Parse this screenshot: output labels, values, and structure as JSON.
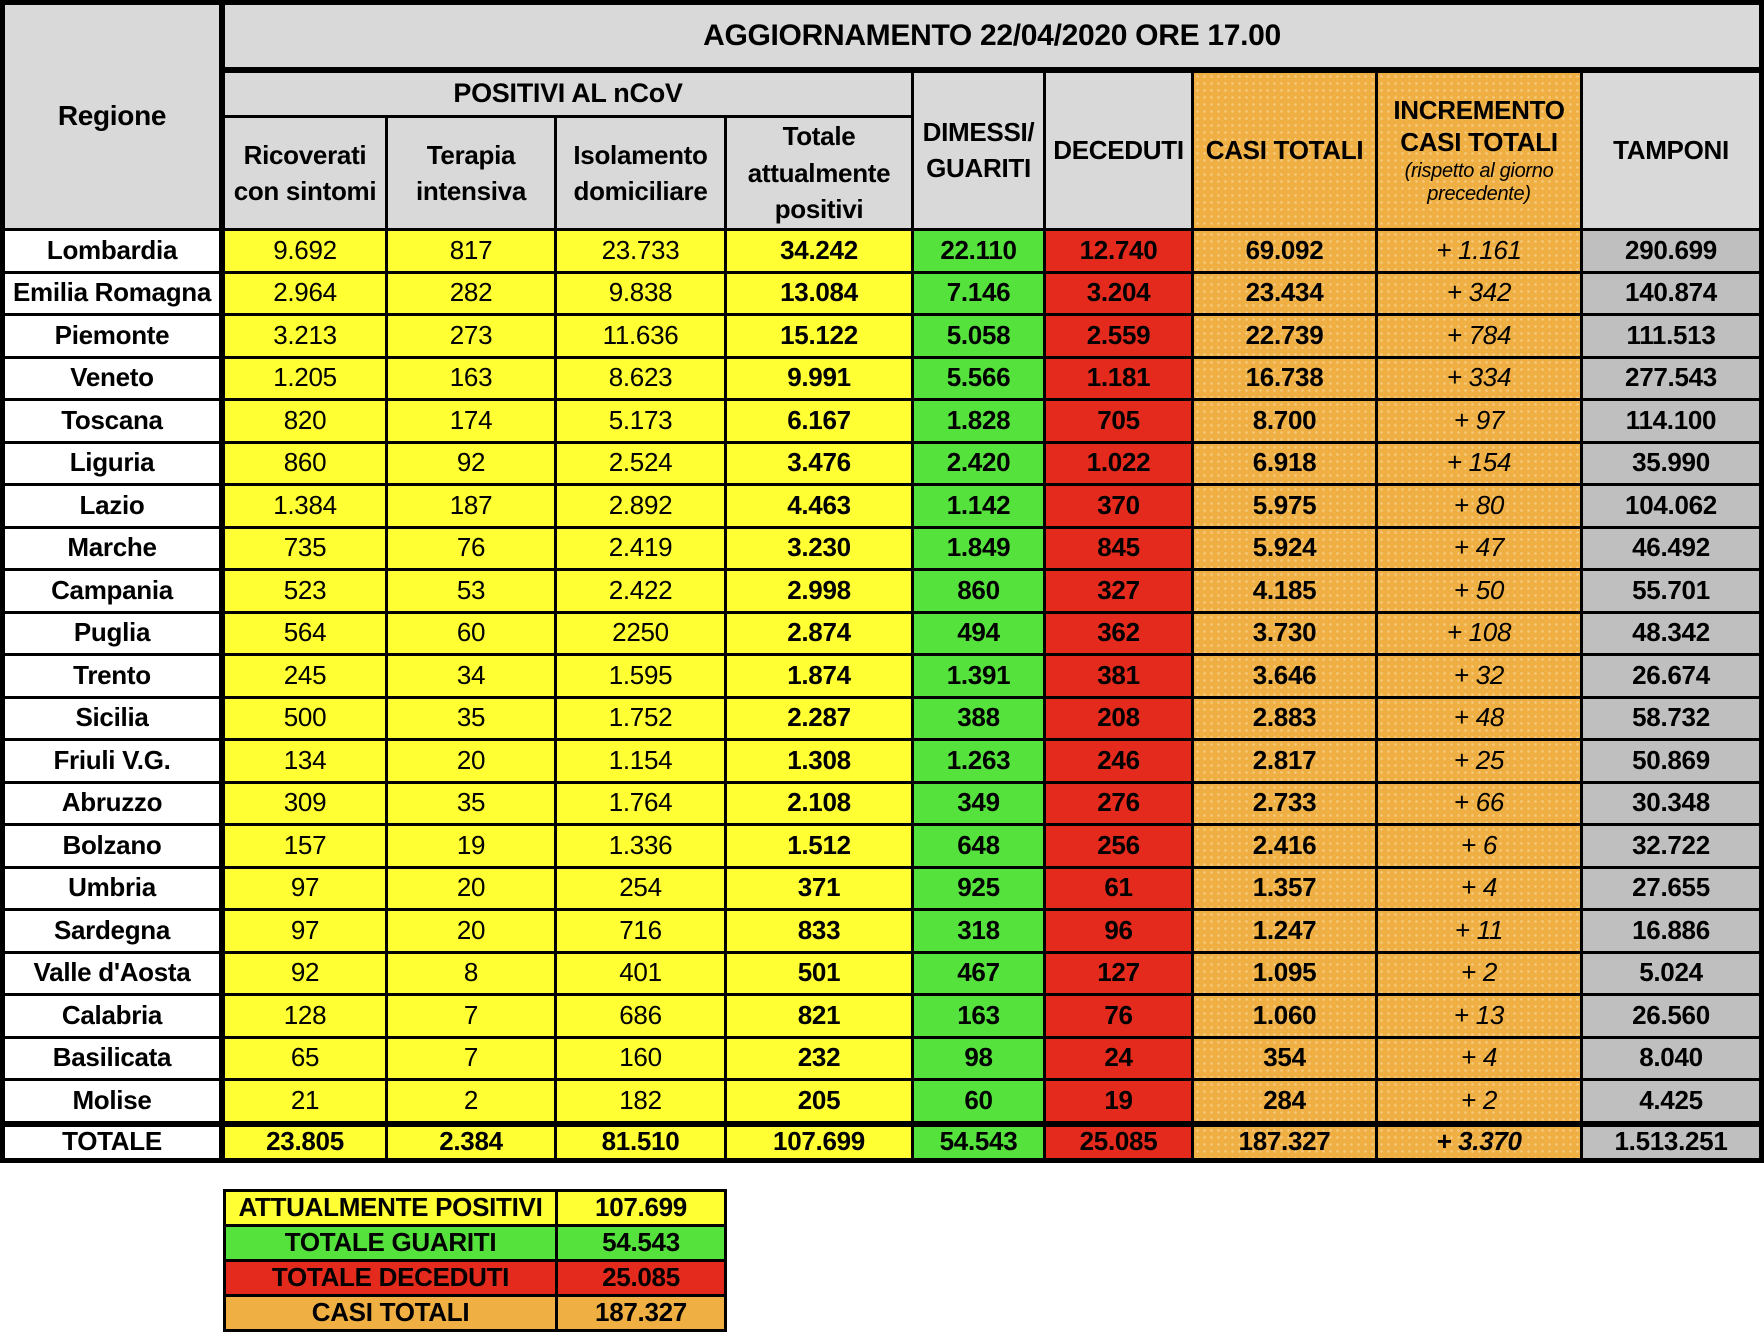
{
  "colors": {
    "yellow": "#FFFF33",
    "green": "#55E23C",
    "red": "#E42A1C",
    "orange": "#EFAF42",
    "header_gray": "#D9D9D9",
    "swab_gray": "#BFBFBF",
    "region_white": "#FFFFFF"
  },
  "header": {
    "update_title": "AGGIORNAMENTO 22/04/2020 ORE 17.00",
    "region_label": "Regione",
    "positives_group": "POSITIVI AL nCoV",
    "col_hospitalized": "Ricoverati con sintomi",
    "col_icu": "Terapia intensiva",
    "col_isolation": "Isolamento domiciliare",
    "col_total_positive": "Totale attualmente positivi",
    "col_recovered": "DIMESSI/ GUARITI",
    "col_deceased": "DECEDUTI",
    "col_total_cases": "CASI TOTALI",
    "col_increment": "INCREMENTO CASI TOTALI",
    "col_increment_note": "(rispetto al giorno precedente)",
    "col_swabs": "TAMPONI"
  },
  "chart_data": {
    "type": "table",
    "title": "AGGIORNAMENTO 22/04/2020 ORE 17.00",
    "column_group": {
      "label": "POSITIVI AL nCoV",
      "columns": [
        "Ricoverati con sintomi",
        "Terapia intensiva",
        "Isolamento domiciliare",
        "Totale attualmente positivi"
      ]
    },
    "columns": [
      "Regione",
      "Ricoverati con sintomi",
      "Terapia intensiva",
      "Isolamento domiciliare",
      "Totale attualmente positivi",
      "DIMESSI/ GUARITI",
      "DECEDUTI",
      "CASI TOTALI",
      "INCREMENTO CASI TOTALI (rispetto al giorno precedente)",
      "TAMPONI"
    ],
    "rows": [
      [
        "Lombardia",
        "9.692",
        "817",
        "23.733",
        "34.242",
        "22.110",
        "12.740",
        "69.092",
        "+ 1.161",
        "290.699"
      ],
      [
        "Emilia Romagna",
        "2.964",
        "282",
        "9.838",
        "13.084",
        "7.146",
        "3.204",
        "23.434",
        "+ 342",
        "140.874"
      ],
      [
        "Piemonte",
        "3.213",
        "273",
        "11.636",
        "15.122",
        "5.058",
        "2.559",
        "22.739",
        "+ 784",
        "111.513"
      ],
      [
        "Veneto",
        "1.205",
        "163",
        "8.623",
        "9.991",
        "5.566",
        "1.181",
        "16.738",
        "+ 334",
        "277.543"
      ],
      [
        "Toscana",
        "820",
        "174",
        "5.173",
        "6.167",
        "1.828",
        "705",
        "8.700",
        "+ 97",
        "114.100"
      ],
      [
        "Liguria",
        "860",
        "92",
        "2.524",
        "3.476",
        "2.420",
        "1.022",
        "6.918",
        "+ 154",
        "35.990"
      ],
      [
        "Lazio",
        "1.384",
        "187",
        "2.892",
        "4.463",
        "1.142",
        "370",
        "5.975",
        "+ 80",
        "104.062"
      ],
      [
        "Marche",
        "735",
        "76",
        "2.419",
        "3.230",
        "1.849",
        "845",
        "5.924",
        "+ 47",
        "46.492"
      ],
      [
        "Campania",
        "523",
        "53",
        "2.422",
        "2.998",
        "860",
        "327",
        "4.185",
        "+ 50",
        "55.701"
      ],
      [
        "Puglia",
        "564",
        "60",
        "2250",
        "2.874",
        "494",
        "362",
        "3.730",
        "+ 108",
        "48.342"
      ],
      [
        "Trento",
        "245",
        "34",
        "1.595",
        "1.874",
        "1.391",
        "381",
        "3.646",
        "+ 32",
        "26.674"
      ],
      [
        "Sicilia",
        "500",
        "35",
        "1.752",
        "2.287",
        "388",
        "208",
        "2.883",
        "+ 48",
        "58.732"
      ],
      [
        "Friuli V.G.",
        "134",
        "20",
        "1.154",
        "1.308",
        "1.263",
        "246",
        "2.817",
        "+ 25",
        "50.869"
      ],
      [
        "Abruzzo",
        "309",
        "35",
        "1.764",
        "2.108",
        "349",
        "276",
        "2.733",
        "+ 66",
        "30.348"
      ],
      [
        "Bolzano",
        "157",
        "19",
        "1.336",
        "1.512",
        "648",
        "256",
        "2.416",
        "+ 6",
        "32.722"
      ],
      [
        "Umbria",
        "97",
        "20",
        "254",
        "371",
        "925",
        "61",
        "1.357",
        "+ 4",
        "27.655"
      ],
      [
        "Sardegna",
        "97",
        "20",
        "716",
        "833",
        "318",
        "96",
        "1.247",
        "+ 11",
        "16.886"
      ],
      [
        "Valle d'Aosta",
        "92",
        "8",
        "401",
        "501",
        "467",
        "127",
        "1.095",
        "+ 2",
        "5.024"
      ],
      [
        "Calabria",
        "128",
        "7",
        "686",
        "821",
        "163",
        "76",
        "1.060",
        "+ 13",
        "26.560"
      ],
      [
        "Basilicata",
        "65",
        "7",
        "160",
        "232",
        "98",
        "24",
        "354",
        "+ 4",
        "8.040"
      ],
      [
        "Molise",
        "21",
        "2",
        "182",
        "205",
        "60",
        "19",
        "284",
        "+ 2",
        "4.425"
      ]
    ],
    "total_row": [
      "TOTALE",
      "23.805",
      "2.384",
      "81.510",
      "107.699",
      "54.543",
      "25.085",
      "187.327",
      "+ 3.370",
      "1.513.251"
    ],
    "summary": [
      {
        "name": "attualmente-positivi",
        "label": "ATTUALMENTE POSITIVI",
        "value": "107.699",
        "color": "yellow"
      },
      {
        "name": "totale-guariti",
        "label": "TOTALE GUARITI",
        "value": "54.543",
        "color": "green"
      },
      {
        "name": "totale-deceduti",
        "label": "TOTALE DECEDUTI",
        "value": "25.085",
        "color": "red"
      },
      {
        "name": "casi-totali",
        "label": "CASI TOTALI",
        "value": "187.327",
        "color": "orange"
      }
    ]
  }
}
